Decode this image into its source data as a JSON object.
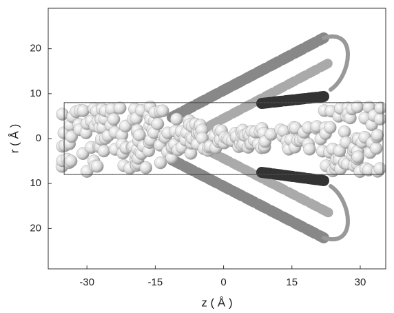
{
  "chart_data": {
    "type": "figure",
    "xlabel": "z ( Å )",
    "ylabel": "r ( Å )",
    "xlim": [
      -38.5,
      35.6
    ],
    "ylim": [
      -29,
      29
    ],
    "xticks": [
      -30,
      -15,
      0,
      15,
      30
    ],
    "yticks": [
      {
        "value": -20,
        "label": "20"
      },
      {
        "value": -10,
        "label": "10"
      },
      0,
      10,
      20
    ],
    "box": {
      "z": [
        -35,
        35
      ],
      "r": [
        -8,
        8
      ]
    }
  }
}
